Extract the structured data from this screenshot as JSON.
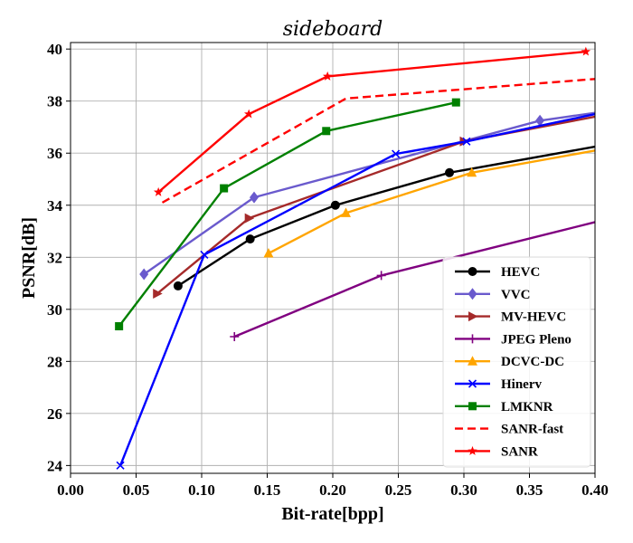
{
  "chart_data": {
    "type": "line",
    "title": "sideboard",
    "xlabel": "Bit-rate[bpp]",
    "ylabel": "PSNR[dB]",
    "xlim": [
      0.0,
      0.4
    ],
    "ylim": [
      23.7,
      40.25
    ],
    "xticks": [
      "0.00",
      "0.05",
      "0.10",
      "0.15",
      "0.20",
      "0.25",
      "0.30",
      "0.35",
      "0.40"
    ],
    "yticks": [
      "24",
      "26",
      "28",
      "30",
      "32",
      "34",
      "36",
      "38",
      "40"
    ],
    "grid": true,
    "legend_position": "lower-right",
    "series": [
      {
        "name": "HEVC",
        "color": "#000000",
        "marker": "circle",
        "dash": "solid",
        "x": [
          0.082,
          0.137,
          0.202,
          0.289,
          0.4
        ],
        "y": [
          30.9,
          32.7,
          34.0,
          35.25,
          36.25
        ]
      },
      {
        "name": "VVC",
        "color": "#6a5acd",
        "marker": "diamond",
        "dash": "solid",
        "x": [
          0.056,
          0.14,
          0.358,
          0.4
        ],
        "y": [
          31.35,
          34.3,
          37.25,
          37.55
        ]
      },
      {
        "name": "MV-HEVC",
        "color": "#a52a2a",
        "marker": "triangle-right",
        "dash": "solid",
        "x": [
          0.066,
          0.136,
          0.3,
          0.4
        ],
        "y": [
          30.6,
          33.5,
          36.45,
          37.4
        ]
      },
      {
        "name": "JPEG Pleno",
        "color": "#800080",
        "marker": "plus",
        "dash": "solid",
        "x": [
          0.125,
          0.237,
          0.4
        ],
        "y": [
          28.95,
          31.3,
          33.35
        ]
      },
      {
        "name": "DCVC-DC",
        "color": "#ffa500",
        "marker": "triangle-up",
        "dash": "solid",
        "x": [
          0.151,
          0.21,
          0.306,
          0.4
        ],
        "y": [
          32.15,
          33.7,
          35.25,
          36.1
        ]
      },
      {
        "name": "Hinerv",
        "color": "#0000ff",
        "marker": "x",
        "dash": "solid",
        "x": [
          0.038,
          0.102,
          0.248,
          0.302,
          0.4
        ],
        "y": [
          24.0,
          32.1,
          35.97,
          36.45,
          37.5
        ]
      },
      {
        "name": "LMKNR",
        "color": "#008000",
        "marker": "square",
        "dash": "solid",
        "x": [
          0.037,
          0.117,
          0.195,
          0.294
        ],
        "y": [
          29.35,
          34.65,
          36.85,
          37.95
        ]
      },
      {
        "name": "SANR-fast",
        "color": "#ff0000",
        "marker": "none",
        "dash": "dashed",
        "x": [
          0.07,
          0.21,
          0.4
        ],
        "y": [
          34.1,
          38.1,
          38.85
        ]
      },
      {
        "name": "SANR",
        "color": "#ff0000",
        "marker": "star",
        "dash": "solid",
        "x": [
          0.067,
          0.136,
          0.196,
          0.393
        ],
        "y": [
          34.5,
          37.5,
          38.95,
          39.9
        ]
      }
    ]
  }
}
